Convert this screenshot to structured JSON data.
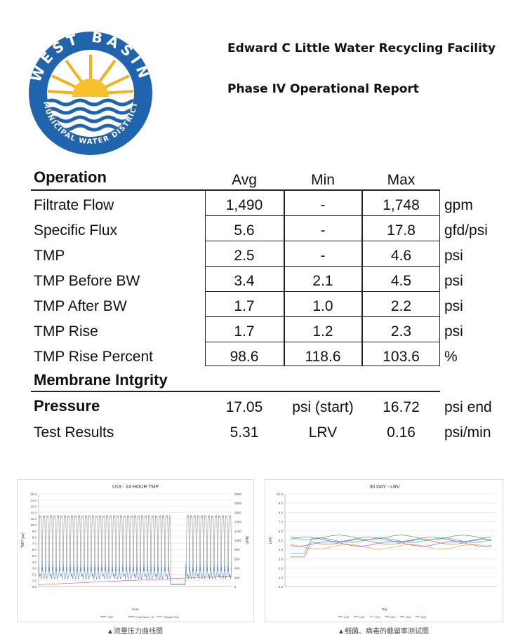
{
  "header": {
    "logo_top_text": "WEST BASIN",
    "logo_bottom_text": "MUNICIPAL WATER DISTRICT",
    "title": "Edward C Little Water Recycling Facility",
    "subtitle": "Phase IV Operational Report"
  },
  "operation": {
    "heading": "Operation",
    "col_avg": "Avg",
    "col_min": "Min",
    "col_max": "Max",
    "rows": [
      {
        "label": "Filtrate Flow",
        "avg": "1,490",
        "min": "-",
        "max": "1,748",
        "unit": "gpm"
      },
      {
        "label": "Specific Flux",
        "avg": "5.6",
        "min": "-",
        "max": "17.8",
        "unit": "gfd/psi"
      },
      {
        "label": "TMP",
        "avg": "2.5",
        "min": "-",
        "max": "4.6",
        "unit": "psi"
      },
      {
        "label": "TMP Before BW",
        "avg": "3.4",
        "min": "2.1",
        "max": "4.5",
        "unit": "psi"
      },
      {
        "label": "TMP After BW",
        "avg": "1.7",
        "min": "1.0",
        "max": "2.2",
        "unit": "psi"
      },
      {
        "label": "TMP Rise",
        "avg": "1.7",
        "min": "1.2",
        "max": "2.3",
        "unit": "psi"
      },
      {
        "label": "TMP Rise Percent",
        "avg": "98.6",
        "min": "118.6",
        "max": "103.6",
        "unit": "%"
      }
    ]
  },
  "membrane": {
    "heading": "Membrane Intgrity",
    "pressure": {
      "label": "Pressure",
      "v1": "17.05",
      "v2": "psi (start)",
      "v3": "16.72",
      "v4": "psi end"
    },
    "test": {
      "label": "Test Results",
      "v1": "5.31",
      "v2": "LRV",
      "v3": "0.16",
      "v4": "psi/min"
    }
  },
  "chart_data": [
    {
      "type": "line",
      "title": "U19 - 24 HOUR TMP",
      "xlabel": "Hour",
      "ylabel": "TMP (psi)",
      "y2label": "GPM",
      "ylim": [
        0,
        15
      ],
      "y2lim": [
        0,
        2000
      ],
      "yticks": [
        "15.0",
        "14.0",
        "13.0",
        "12.0",
        "11.0",
        "10.0",
        "9.0",
        "8.0",
        "7.0",
        "6.0",
        "5.0",
        "4.0",
        "3.0",
        "2.0",
        "1.0",
        "0.0"
      ],
      "y2ticks": [
        "2000",
        "1800",
        "1600",
        "1400",
        "1200",
        "1000",
        "800",
        "600",
        "400",
        "200",
        "0"
      ],
      "legend": [
        "TMP",
        "Feed Tank / 10",
        "Filtrate Flow"
      ],
      "legend_position": "bottom",
      "caption": "▲流量压力曲线图"
    },
    {
      "type": "line",
      "title": "30 DAY - LRV",
      "xlabel": "Day",
      "ylabel": "LRV",
      "ylim": [
        0,
        10
      ],
      "yticks": [
        "10.0",
        "9.0",
        "8.0",
        "7.0",
        "6.0",
        "5.0",
        "4.0",
        "3.0",
        "2.0",
        "1.0",
        "0.0"
      ],
      "legend": [
        "U19",
        "U20",
        "U21",
        "U22",
        "U23",
        "U24"
      ],
      "legend_position": "bottom",
      "series_colors": [
        "#3b6fd6",
        "#d24a3a",
        "#e0a020",
        "#3aa048",
        "#8a4ad0",
        "#20a0c0"
      ],
      "caption": "▲细菌、病毒的截留率测试图"
    }
  ]
}
